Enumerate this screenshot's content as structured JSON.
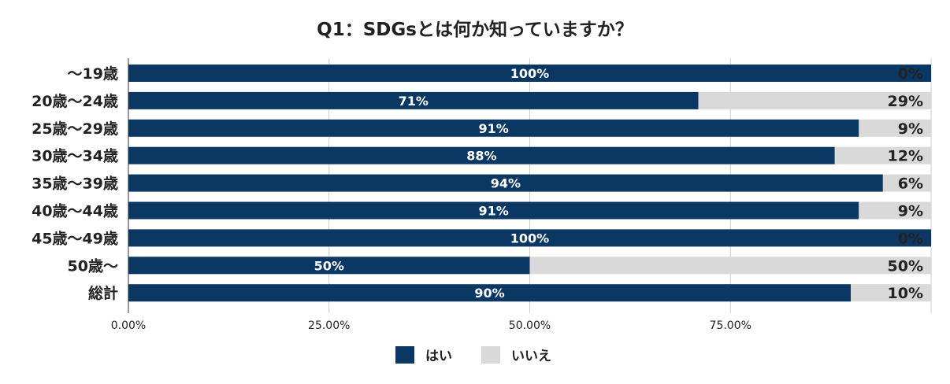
{
  "chart_data": {
    "type": "bar",
    "orientation": "horizontal",
    "stacked": true,
    "title": "Q1：SDGsとは何か知っていますか？",
    "categories": [
      "～19歳",
      "20歳～24歳",
      "25歳～29歳",
      "30歳～34歳",
      "35歳～39歳",
      "40歳～44歳",
      "45歳～49歳",
      "50歳～",
      "総計"
    ],
    "series": [
      {
        "name": "はい",
        "values": [
          100,
          71,
          91,
          88,
          94,
          91,
          100,
          50,
          90
        ],
        "labels": [
          "100%",
          "71%",
          "91%",
          "88%",
          "94%",
          "91%",
          "100%",
          "50%",
          "90%"
        ],
        "color": "#0b3763"
      },
      {
        "name": "いいえ",
        "values": [
          0,
          29,
          9,
          12,
          6,
          9,
          0,
          50,
          10
        ],
        "labels": [
          "0%",
          "29%",
          "9%",
          "12%",
          "6%",
          "9%",
          "0%",
          "50%",
          "10%"
        ],
        "color": "#d9d9d9"
      }
    ],
    "x_ticks": [
      "0.00%",
      "25.00%",
      "50.00%",
      "75.00%"
    ],
    "xlim": [
      0,
      100
    ],
    "grid": true,
    "legend_position": "bottom"
  }
}
